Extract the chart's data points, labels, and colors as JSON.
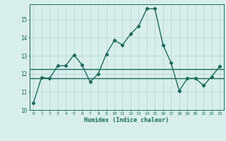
{
  "x": [
    0,
    1,
    2,
    3,
    4,
    5,
    6,
    7,
    8,
    9,
    10,
    11,
    12,
    13,
    14,
    15,
    16,
    17,
    18,
    19,
    20,
    21,
    22,
    23
  ],
  "y": [
    10.4,
    11.8,
    11.75,
    12.45,
    12.45,
    13.05,
    12.5,
    11.55,
    12.0,
    13.1,
    13.85,
    13.6,
    14.2,
    14.65,
    15.6,
    15.6,
    13.6,
    12.6,
    11.05,
    11.75,
    11.75,
    11.35,
    11.85,
    12.4
  ],
  "hline1_y": 11.75,
  "hline2_y": 12.25,
  "line_color": "#1a6b5a",
  "bg_color": "#d8eeec",
  "grid_color": "#b8d8d5",
  "xlabel": "Humidex (Indice chaleur)",
  "xlim": [
    -0.5,
    23.5
  ],
  "ylim": [
    10.0,
    15.85
  ],
  "xticks": [
    0,
    1,
    2,
    3,
    4,
    5,
    6,
    7,
    8,
    9,
    10,
    11,
    12,
    13,
    14,
    15,
    16,
    17,
    18,
    19,
    20,
    21,
    22,
    23
  ],
  "yticks": [
    10,
    11,
    12,
    13,
    14,
    15
  ],
  "marker": "D",
  "marker_size": 2.2,
  "linewidth": 1.0
}
